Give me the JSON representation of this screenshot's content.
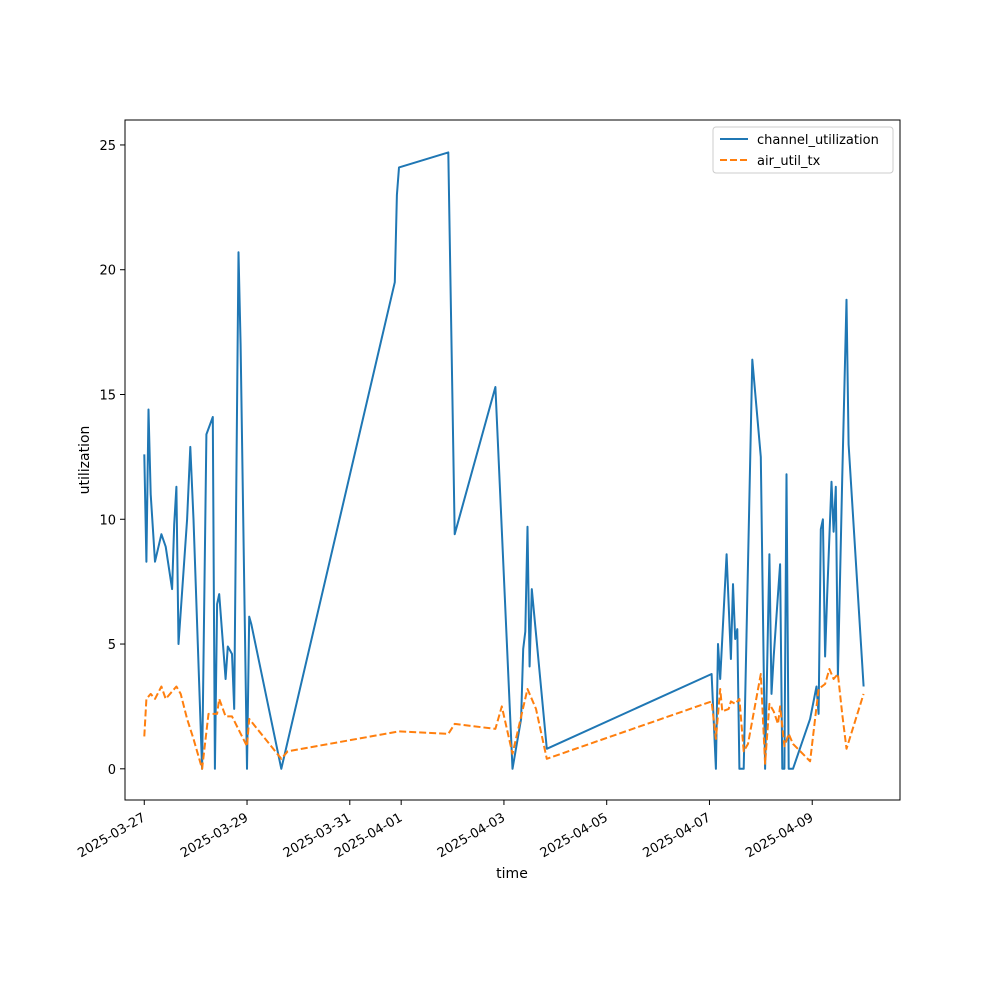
{
  "chart_data": {
    "type": "line",
    "title": "",
    "xlabel": "time",
    "ylabel": "utilization",
    "xlim": [
      "2025-03-26T15:00",
      "2025-04-10T17:00"
    ],
    "ylim": [
      -1.25,
      26.0
    ],
    "x_ticks": [
      "2025-03-27",
      "2025-03-29",
      "2025-03-31",
      "2025-04-01",
      "2025-04-03",
      "2025-04-05",
      "2025-04-07",
      "2025-04-09"
    ],
    "y_ticks": [
      0,
      5,
      10,
      15,
      20,
      25
    ],
    "legend_position": "upper-right",
    "grid": false,
    "series": [
      {
        "name": "channel_utilization",
        "color": "#1f77b4",
        "dash": "solid",
        "points": [
          [
            "2025-03-27T00:00",
            12.6
          ],
          [
            "2025-03-27T01:00",
            8.3
          ],
          [
            "2025-03-27T02:00",
            14.4
          ],
          [
            "2025-03-27T03:00",
            11.0
          ],
          [
            "2025-03-27T05:00",
            8.3
          ],
          [
            "2025-03-27T08:00",
            9.4
          ],
          [
            "2025-03-27T10:00",
            8.9
          ],
          [
            "2025-03-27T13:00",
            7.2
          ],
          [
            "2025-03-27T14:00",
            9.8
          ],
          [
            "2025-03-27T15:00",
            11.3
          ],
          [
            "2025-03-27T16:00",
            5.0
          ],
          [
            "2025-03-27T20:00",
            10.0
          ],
          [
            "2025-03-27T21:30",
            12.9
          ],
          [
            "2025-03-27T23:00",
            10.0
          ],
          [
            "2025-03-28T01:00",
            5.0
          ],
          [
            "2025-03-28T03:00",
            0.0
          ],
          [
            "2025-03-28T05:00",
            13.4
          ],
          [
            "2025-03-28T08:00",
            14.1
          ],
          [
            "2025-03-28T09:00",
            0.0
          ],
          [
            "2025-03-28T10:00",
            6.6
          ],
          [
            "2025-03-28T11:00",
            7.0
          ],
          [
            "2025-03-28T14:00",
            3.6
          ],
          [
            "2025-03-28T15:00",
            4.9
          ],
          [
            "2025-03-28T17:00",
            4.6
          ],
          [
            "2025-03-28T18:00",
            2.4
          ],
          [
            "2025-03-28T20:00",
            20.7
          ],
          [
            "2025-03-28T21:00",
            17.0
          ],
          [
            "2025-03-29T00:00",
            0.0
          ],
          [
            "2025-03-29T01:00",
            6.1
          ],
          [
            "2025-03-29T02:00",
            5.8
          ],
          [
            "2025-03-29T16:00",
            0.0
          ],
          [
            "2025-03-31T21:00",
            19.5
          ],
          [
            "2025-03-31T22:00",
            23.0
          ],
          [
            "2025-03-31T23:00",
            24.1
          ],
          [
            "2025-04-01T22:00",
            24.7
          ],
          [
            "2025-04-02T01:00",
            9.4
          ],
          [
            "2025-04-02T20:00",
            15.3
          ],
          [
            "2025-04-03T04:00",
            0.0
          ],
          [
            "2025-04-03T08:00",
            2.0
          ],
          [
            "2025-04-03T09:00",
            4.8
          ],
          [
            "2025-04-03T10:00",
            5.5
          ],
          [
            "2025-04-03T11:00",
            9.7
          ],
          [
            "2025-04-03T12:00",
            4.1
          ],
          [
            "2025-04-03T13:00",
            7.2
          ],
          [
            "2025-04-03T20:00",
            0.8
          ],
          [
            "2025-04-07T01:00",
            3.8
          ],
          [
            "2025-04-07T03:00",
            0.0
          ],
          [
            "2025-04-07T04:00",
            5.0
          ],
          [
            "2025-04-07T05:00",
            3.6
          ],
          [
            "2025-04-07T08:00",
            8.6
          ],
          [
            "2025-04-07T10:00",
            4.4
          ],
          [
            "2025-04-07T11:00",
            7.4
          ],
          [
            "2025-04-07T12:00",
            5.2
          ],
          [
            "2025-04-07T13:00",
            5.6
          ],
          [
            "2025-04-07T14:00",
            0.0
          ],
          [
            "2025-04-07T16:00",
            0.0
          ],
          [
            "2025-04-07T20:00",
            16.4
          ],
          [
            "2025-04-08T00:00",
            12.5
          ],
          [
            "2025-04-08T02:00",
            0.0
          ],
          [
            "2025-04-08T04:00",
            8.6
          ],
          [
            "2025-04-08T05:00",
            3.0
          ],
          [
            "2025-04-08T06:00",
            4.5
          ],
          [
            "2025-04-08T08:00",
            7.0
          ],
          [
            "2025-04-08T09:00",
            8.2
          ],
          [
            "2025-04-08T10:00",
            0.0
          ],
          [
            "2025-04-08T11:00",
            0.0
          ],
          [
            "2025-04-08T12:00",
            11.8
          ],
          [
            "2025-04-08T13:00",
            0.0
          ],
          [
            "2025-04-08T15:00",
            0.0
          ],
          [
            "2025-04-08T19:00",
            1.0
          ],
          [
            "2025-04-08T23:00",
            2.0
          ],
          [
            "2025-04-09T02:00",
            3.3
          ],
          [
            "2025-04-09T03:00",
            2.2
          ],
          [
            "2025-04-09T04:00",
            9.6
          ],
          [
            "2025-04-09T05:00",
            10.0
          ],
          [
            "2025-04-09T06:00",
            4.5
          ],
          [
            "2025-04-09T07:00",
            7.0
          ],
          [
            "2025-04-09T09:00",
            11.5
          ],
          [
            "2025-04-09T10:00",
            9.5
          ],
          [
            "2025-04-09T11:00",
            11.3
          ],
          [
            "2025-04-09T12:00",
            3.7
          ],
          [
            "2025-04-09T14:00",
            11.6
          ],
          [
            "2025-04-09T16:00",
            18.8
          ],
          [
            "2025-04-09T17:00",
            13.0
          ],
          [
            "2025-04-10T00:00",
            3.3
          ]
        ]
      },
      {
        "name": "air_util_tx",
        "color": "#ff7f0e",
        "dash": "dashed",
        "points": [
          [
            "2025-03-27T00:00",
            1.3
          ],
          [
            "2025-03-27T01:00",
            2.8
          ],
          [
            "2025-03-27T03:00",
            3.0
          ],
          [
            "2025-03-27T05:00",
            2.8
          ],
          [
            "2025-03-27T08:00",
            3.3
          ],
          [
            "2025-03-27T10:00",
            2.8
          ],
          [
            "2025-03-27T15:00",
            3.3
          ],
          [
            "2025-03-27T17:00",
            3.0
          ],
          [
            "2025-03-27T20:00",
            2.0
          ],
          [
            "2025-03-27T23:00",
            1.2
          ],
          [
            "2025-03-28T03:00",
            0.0
          ],
          [
            "2025-03-28T06:00",
            2.2
          ],
          [
            "2025-03-28T10:00",
            2.2
          ],
          [
            "2025-03-28T11:00",
            2.8
          ],
          [
            "2025-03-28T14:00",
            2.1
          ],
          [
            "2025-03-28T17:00",
            2.1
          ],
          [
            "2025-03-29T00:00",
            0.9
          ],
          [
            "2025-03-29T01:00",
            2.0
          ],
          [
            "2025-03-29T16:00",
            0.4
          ],
          [
            "2025-03-29T19:00",
            0.7
          ],
          [
            "2025-03-31T23:00",
            1.5
          ],
          [
            "2025-04-01T22:00",
            1.4
          ],
          [
            "2025-04-02T01:00",
            1.8
          ],
          [
            "2025-04-02T20:00",
            1.6
          ],
          [
            "2025-04-02T23:00",
            2.5
          ],
          [
            "2025-04-03T04:00",
            0.6
          ],
          [
            "2025-04-03T11:00",
            3.2
          ],
          [
            "2025-04-03T15:00",
            2.4
          ],
          [
            "2025-04-03T20:00",
            0.4
          ],
          [
            "2025-04-07T01:00",
            2.7
          ],
          [
            "2025-04-07T03:00",
            1.2
          ],
          [
            "2025-04-07T05:00",
            3.2
          ],
          [
            "2025-04-07T06:00",
            2.3
          ],
          [
            "2025-04-07T09:00",
            2.4
          ],
          [
            "2025-04-07T10:00",
            2.7
          ],
          [
            "2025-04-07T12:00",
            2.6
          ],
          [
            "2025-04-07T14:00",
            2.8
          ],
          [
            "2025-04-07T16:00",
            0.7
          ],
          [
            "2025-04-07T18:00",
            1.0
          ],
          [
            "2025-04-08T00:00",
            3.8
          ],
          [
            "2025-04-08T02:00",
            0.2
          ],
          [
            "2025-04-08T04:00",
            2.6
          ],
          [
            "2025-04-08T06:00",
            2.3
          ],
          [
            "2025-04-08T08:00",
            1.8
          ],
          [
            "2025-04-08T09:00",
            2.5
          ],
          [
            "2025-04-08T11:00",
            0.9
          ],
          [
            "2025-04-08T13:00",
            1.4
          ],
          [
            "2025-04-08T15:00",
            1.0
          ],
          [
            "2025-04-08T23:00",
            0.3
          ],
          [
            "2025-04-09T03:00",
            3.2
          ],
          [
            "2025-04-09T06:00",
            3.4
          ],
          [
            "2025-04-09T08:00",
            4.0
          ],
          [
            "2025-04-09T10:00",
            3.6
          ],
          [
            "2025-04-09T12:00",
            3.8
          ],
          [
            "2025-04-09T14:00",
            2.2
          ],
          [
            "2025-04-09T16:00",
            0.8
          ],
          [
            "2025-04-10T00:00",
            3.0
          ]
        ]
      }
    ]
  }
}
